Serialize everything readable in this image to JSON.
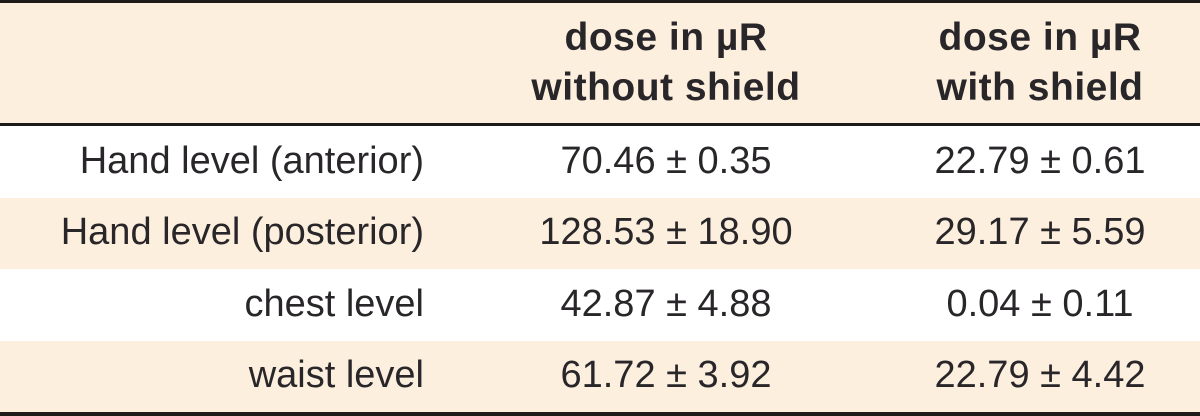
{
  "table": {
    "header": {
      "label_column": "",
      "without_shield": {
        "line1": "dose in µR",
        "line2": "without shield"
      },
      "with_shield": {
        "line1": "dose in µR",
        "line2": "with shield"
      }
    },
    "rows": [
      {
        "label": "Hand level (anterior)",
        "dose_without_shield": "70.46 ± 0.35",
        "dose_with_shield": "22.79 ± 0.61"
      },
      {
        "label": "Hand level (posterior)",
        "dose_without_shield": "128.53 ± 18.90",
        "dose_with_shield": "29.17 ± 5.59"
      },
      {
        "label": "chest level",
        "dose_without_shield": "42.87 ± 4.88",
        "dose_with_shield": "0.04 ± 0.11"
      },
      {
        "label": "waist level",
        "dose_without_shield": "61.72 ± 3.92",
        "dose_with_shield": "22.79 ± 4.42"
      }
    ]
  },
  "colors": {
    "band_cream": "#fcefde",
    "row_white": "#ffffff",
    "rule_black": "#1c1b1a",
    "text": "#29262a"
  }
}
